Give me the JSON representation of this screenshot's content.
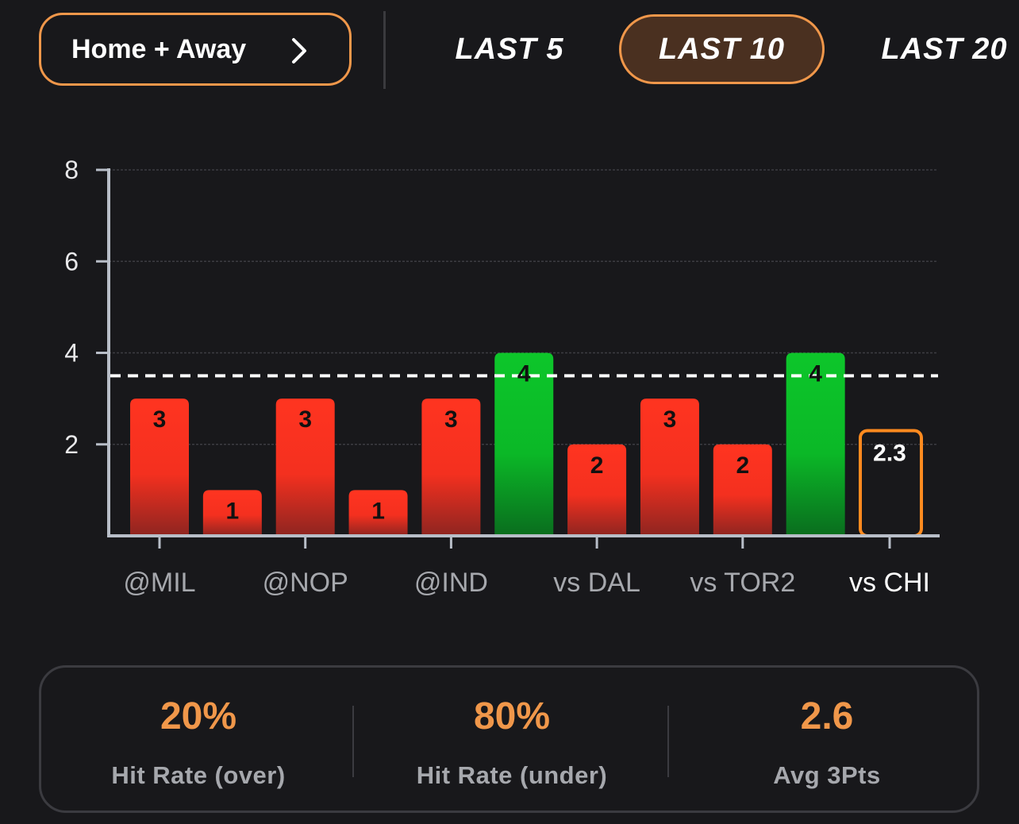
{
  "filter": {
    "location_label": "Home + Away"
  },
  "ranges": {
    "last5": "LAST 5",
    "last10": "LAST 10",
    "last20": "LAST 20",
    "selected": "LAST 10"
  },
  "colors": {
    "accent": "#f0974a",
    "over": "#0dc62a",
    "under": "#ff3420",
    "projection": "#ff8a1f"
  },
  "chart_data": {
    "type": "bar",
    "title": "",
    "xlabel": "",
    "ylabel": "",
    "ylim": [
      0,
      8
    ],
    "yticks": [
      2,
      4,
      6,
      8
    ],
    "line": 3.5,
    "categories": [
      "@MIL",
      "",
      "@NOP",
      "",
      "@IND",
      "",
      "vs DAL",
      "",
      "vs TOR2",
      ""
    ],
    "tick_labels": [
      "@MIL",
      "@NOP",
      "@IND",
      "vs DAL",
      "vs TOR2"
    ],
    "values": [
      3,
      1,
      3,
      1,
      3,
      4,
      2,
      3,
      2,
      4
    ],
    "value_labels": [
      "3",
      "1",
      "3",
      "1",
      "3",
      "4",
      "2",
      "3",
      "2",
      "4"
    ],
    "results": [
      "under",
      "under",
      "under",
      "under",
      "under",
      "over",
      "under",
      "under",
      "under",
      "over"
    ],
    "projection": {
      "category": "vs CHI",
      "value": 2.3,
      "label": "2.3"
    }
  },
  "stats": [
    {
      "value": "20%",
      "label": "Hit Rate (over)"
    },
    {
      "value": "80%",
      "label": "Hit Rate (under)"
    },
    {
      "value": "2.6",
      "label": "Avg 3Pts"
    }
  ]
}
